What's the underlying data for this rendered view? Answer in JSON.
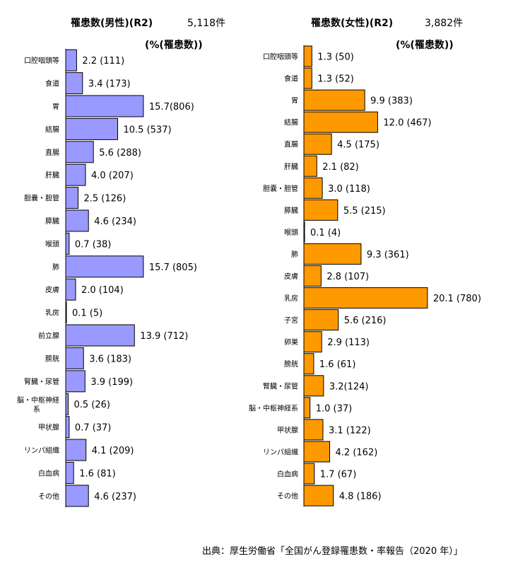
{
  "male": {
    "title": "罹患数(男性)(R2)",
    "total": "5,118件",
    "unit_label": "(%(罹患数))"
  },
  "female": {
    "title": "罹患数(女性)(R2)",
    "total": "3,882件",
    "unit_label": "(%(罹患数))"
  },
  "source": "出典：厚生労働省「全国がん登録罹患数・率報告（2020 年）」",
  "colors": {
    "male_bar": "#9999ff",
    "female_bar": "#ff9900",
    "outline": "#000000"
  },
  "chart_data": [
    {
      "type": "bar",
      "orientation": "horizontal",
      "series_label": "男性",
      "categories": [
        "口腔咽頭等",
        "食道",
        "胃",
        "結腸",
        "直腸",
        "肝臓",
        "胆嚢・胆管",
        "膵臓",
        "喉頭",
        "肺",
        "皮膚",
        "乳房",
        "前立腺",
        "膀胱",
        "腎臓・尿管",
        "脳・中枢神経系",
        "甲状腺",
        "リンパ組織",
        "白血病",
        "その他"
      ],
      "values": [
        2.2,
        3.4,
        15.7,
        10.5,
        5.6,
        4.0,
        2.5,
        4.6,
        0.7,
        15.7,
        2.0,
        0.1,
        13.9,
        3.6,
        3.9,
        0.5,
        0.7,
        4.1,
        1.6,
        4.6
      ],
      "labels": [
        "2.2 (111)",
        "3.4 (173)",
        "15.7(806)",
        "10.5 (537)",
        "5.6 (288)",
        "4.0 (207)",
        "2.5 (126)",
        "4.6 (234)",
        "0.7 (38)",
        "15.7 (805)",
        "2.0 (104)",
        "0.1 (5)",
        "13.9 (712)",
        "3.6 (183)",
        "3.9 (199)",
        "0.5 (26)",
        "0.7 (37)",
        "4.1 (209)",
        "1.6 (81)",
        "4.6 (237)"
      ]
    },
    {
      "type": "bar",
      "orientation": "horizontal",
      "series_label": "女性",
      "categories": [
        "口腔咽頭等",
        "食道",
        "胃",
        "結腸",
        "直腸",
        "肝臓",
        "胆嚢・胆管",
        "膵臓",
        "喉頭",
        "肺",
        "皮膚",
        "乳房",
        "子宮",
        "卵巣",
        "膀胱",
        "腎臓・尿管",
        "脳・中枢神経系",
        "甲状腺",
        "リンパ組織",
        "白血病",
        "その他"
      ],
      "values": [
        1.3,
        1.3,
        9.9,
        12.0,
        4.5,
        2.1,
        3.0,
        5.5,
        0.1,
        9.3,
        2.8,
        20.1,
        5.6,
        2.9,
        1.6,
        3.2,
        1.0,
        3.1,
        4.2,
        1.7,
        4.8
      ],
      "labels": [
        "1.3 (50)",
        "1.3 (52)",
        "9.9 (383)",
        "12.0 (467)",
        "4.5 (175)",
        "2.1 (82)",
        "3.0 (118)",
        "5.5 (215)",
        "0.1 (4)",
        "9.3 (361)",
        "2.8 (107)",
        "20.1 (780)",
        "5.6 (216)",
        "2.9 (113)",
        "1.6 (61)",
        "3.2(124)",
        "1.0 (37)",
        "3.1 (122)",
        "4.2 (162)",
        "1.7 (67)",
        "4.8 (186)"
      ]
    }
  ]
}
